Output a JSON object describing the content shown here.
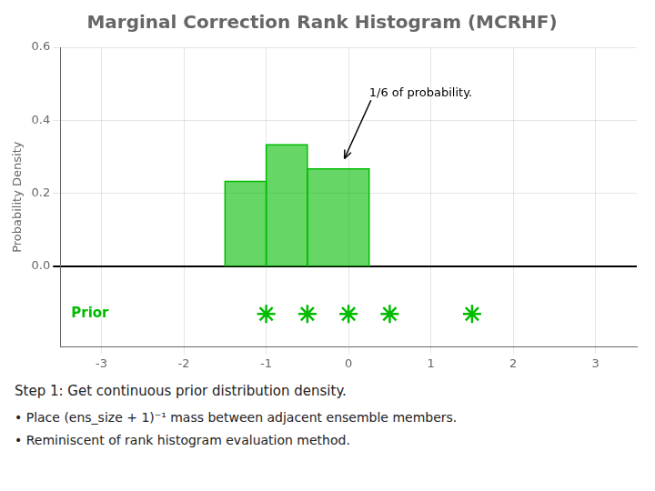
{
  "chart_data": {
    "type": "histogram",
    "title": "Marginal Correction Rank Histogram (MCRHF)",
    "ylabel": "Probability Density",
    "bins": [
      -1.5,
      -1.0,
      -0.5,
      0.25
    ],
    "values": [
      0.233,
      0.333,
      0.267
    ],
    "color": "#00BB00",
    "xlim": [
      -3.5,
      3.5
    ],
    "xticks": [
      -3,
      -2,
      -1,
      0,
      1,
      2,
      3
    ],
    "ylim": [
      -0.22,
      0.6
    ],
    "yticks": [
      {
        "value": 0,
        "label": "0.0"
      },
      0.2,
      0.4,
      0.6
    ],
    "grid": true,
    "series": [
      {
        "name": "Prior",
        "type": "scatter",
        "marker": "star",
        "color": "#00BB00",
        "x": [
          -1.0,
          -0.5,
          0.0,
          0.5,
          1.5
        ],
        "values": [
          -0.13,
          -0.13,
          -0.13,
          -0.13,
          -0.13
        ]
      }
    ],
    "annotations": [
      {
        "text": "1/6 of probability.",
        "xy": [
          -0.05,
          0.295
        ],
        "xytext": [
          0.25,
          0.475
        ]
      }
    ],
    "footer": [
      "Step 1: Get continuous prior distribution density.",
      "• Place (ens_size + 1)⁻¹ mass between adjacent ensemble members.",
      "• Reminiscent of rank histogram evaluation method."
    ]
  }
}
